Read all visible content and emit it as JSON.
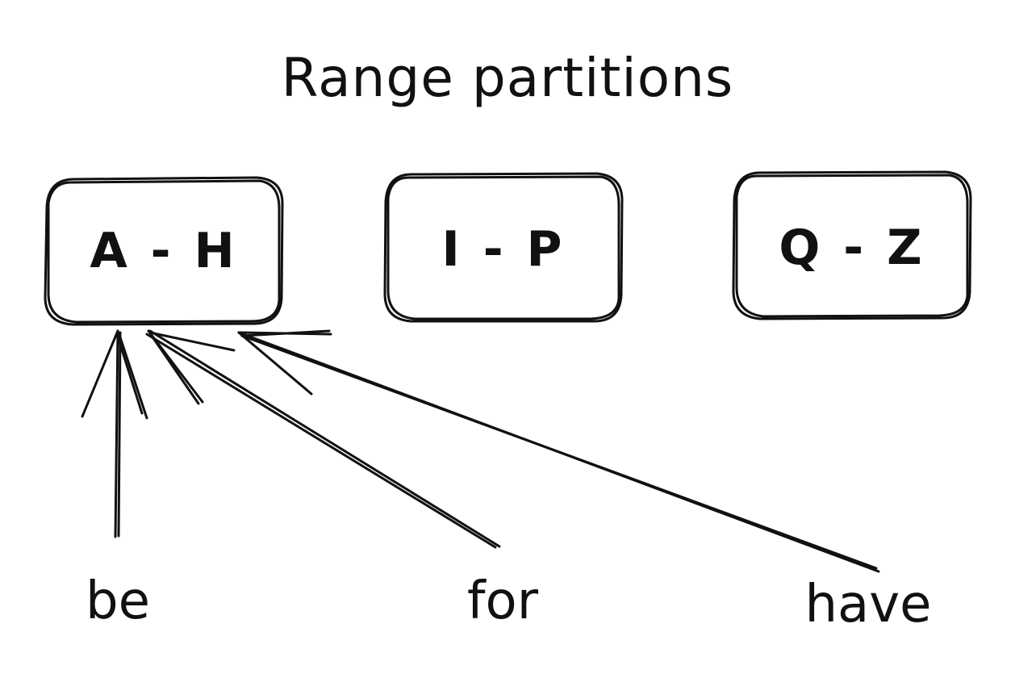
{
  "title": "Range partitions",
  "partitions": [
    {
      "label": "A - H"
    },
    {
      "label": "I - P"
    },
    {
      "label": "Q - Z"
    }
  ],
  "words": [
    {
      "label": "be",
      "target_partition": "A - H"
    },
    {
      "label": "for",
      "target_partition": "A - H"
    },
    {
      "label": "have",
      "target_partition": "A - H"
    }
  ],
  "stroke_color": "#111111",
  "background_color": "#ffffff"
}
